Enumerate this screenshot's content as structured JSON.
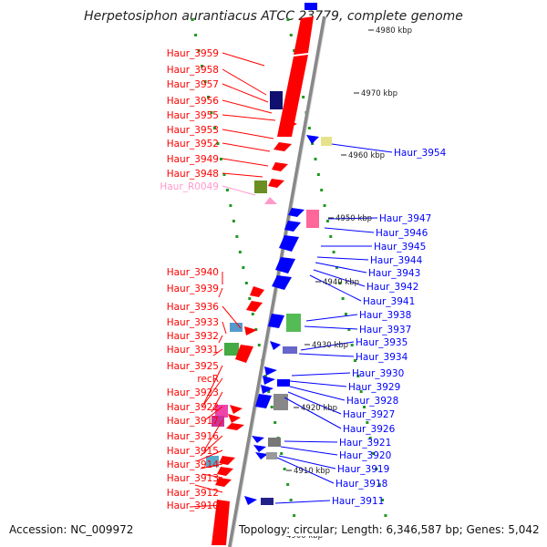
{
  "title": "Herpetosiphon aurantiacus ATCC 23779, complete genome",
  "footer": {
    "accession": "Accession: NC_009972",
    "stats": "Topology: circular; Length: 6,346,587 bp; Genes: 5,042"
  },
  "colors": {
    "forward": "#ff0000",
    "reverse": "#0000ff",
    "rna": "#ff99cc",
    "backbone": "#888888",
    "dots": "#229922"
  },
  "scale_labels": [
    "4980 kbp",
    "4970 kbp",
    "4960 kbp",
    "4950 kbp",
    "4940 kbp",
    "4930 kbp",
    "4920 kbp",
    "4910 kbp",
    "4900 kbp"
  ],
  "left_labels": [
    "Haur_3959",
    "Haur_3958",
    "Haur_3957",
    "Haur_3956",
    "Haur_3955",
    "Haur_3953",
    "Haur_3952",
    "Haur_3949",
    "Haur_3948",
    "Haur_R0049",
    "Haur_3940",
    "Haur_3939",
    "Haur_3936",
    "Haur_3933",
    "Haur_3932",
    "Haur_3931",
    "Haur_3925",
    "recR",
    "Haur_3923",
    "Haur_3922",
    "Haur_3917",
    "Haur_3916",
    "Haur_3915",
    "Haur_3914",
    "Haur_3913",
    "Haur_3912",
    "Haur_3910"
  ],
  "right_labels": [
    "Haur_3954",
    "Haur_3947",
    "Haur_3946",
    "Haur_3945",
    "Haur_3944",
    "Haur_3943",
    "Haur_3942",
    "Haur_3941",
    "Haur_3938",
    "Haur_3937",
    "Haur_3935",
    "Haur_3934",
    "Haur_3930",
    "Haur_3929",
    "Haur_3928",
    "Haur_3927",
    "Haur_3926",
    "Haur_3921",
    "Haur_3920",
    "Haur_3919",
    "Haur_3918",
    "Haur_3911"
  ]
}
